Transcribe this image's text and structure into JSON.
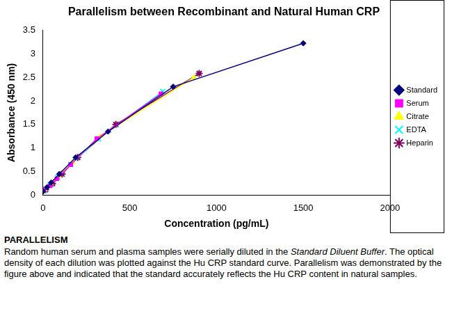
{
  "chart_data": {
    "type": "line",
    "title": "Parallelism between Recombinant and Natural Human CRP",
    "x_label": "Concentration (pg/mL)",
    "y_label": "Absorbance (450 nm)",
    "xlim": [
      0,
      2000
    ],
    "xticks": [
      0,
      500,
      1000,
      1500,
      2000
    ],
    "ylim": [
      0,
      3.5
    ],
    "yticks": [
      0,
      0.5,
      1,
      1.5,
      2,
      2.5,
      3,
      3.5
    ],
    "grid": false,
    "legend": "right",
    "series": [
      {
        "name": "Standard",
        "color": "#000080",
        "marker": "diamond",
        "x": [
          0,
          23,
          47,
          94,
          188,
          375,
          750,
          1500
        ],
        "values": [
          0.08,
          0.17,
          0.27,
          0.45,
          0.8,
          1.35,
          2.3,
          3.22
        ]
      },
      {
        "name": "Serum",
        "color": "#ff00ff",
        "marker": "square",
        "x": [
          5,
          40,
          80,
          160,
          310,
          680
        ],
        "values": [
          0.1,
          0.2,
          0.35,
          0.65,
          1.2,
          2.15
        ]
      },
      {
        "name": "Citrate",
        "color": "#ffff00",
        "marker": "triangle",
        "x": [
          10,
          45,
          90,
          170,
          330,
          870
        ],
        "values": [
          0.12,
          0.25,
          0.4,
          0.7,
          1.25,
          2.5
        ]
      },
      {
        "name": "EDTA",
        "color": "#00ffff",
        "marker": "x",
        "x": [
          8,
          40,
          85,
          160,
          320,
          690
        ],
        "values": [
          0.1,
          0.22,
          0.38,
          0.65,
          1.2,
          2.2
        ]
      },
      {
        "name": "Heparin",
        "color": "#800060",
        "marker": "star",
        "x": [
          15,
          55,
          110,
          200,
          420,
          900
        ],
        "values": [
          0.12,
          0.25,
          0.45,
          0.8,
          1.5,
          2.58
        ]
      }
    ]
  },
  "caption": {
    "heading": "PARALLELISM",
    "body": [
      {
        "text": "Random human serum and plasma samples were serially diluted in the ",
        "style": "normal"
      },
      {
        "text": "Standard Diluent Buffer",
        "style": "italic"
      },
      {
        "text": ". The optical density of each dilution was plotted against the Hu CRP standard curve. Parallelism was demonstrated by the  figure above and indicated that the standard accurately reflects the Hu CRP content in natural samples.",
        "style": "normal"
      }
    ]
  }
}
